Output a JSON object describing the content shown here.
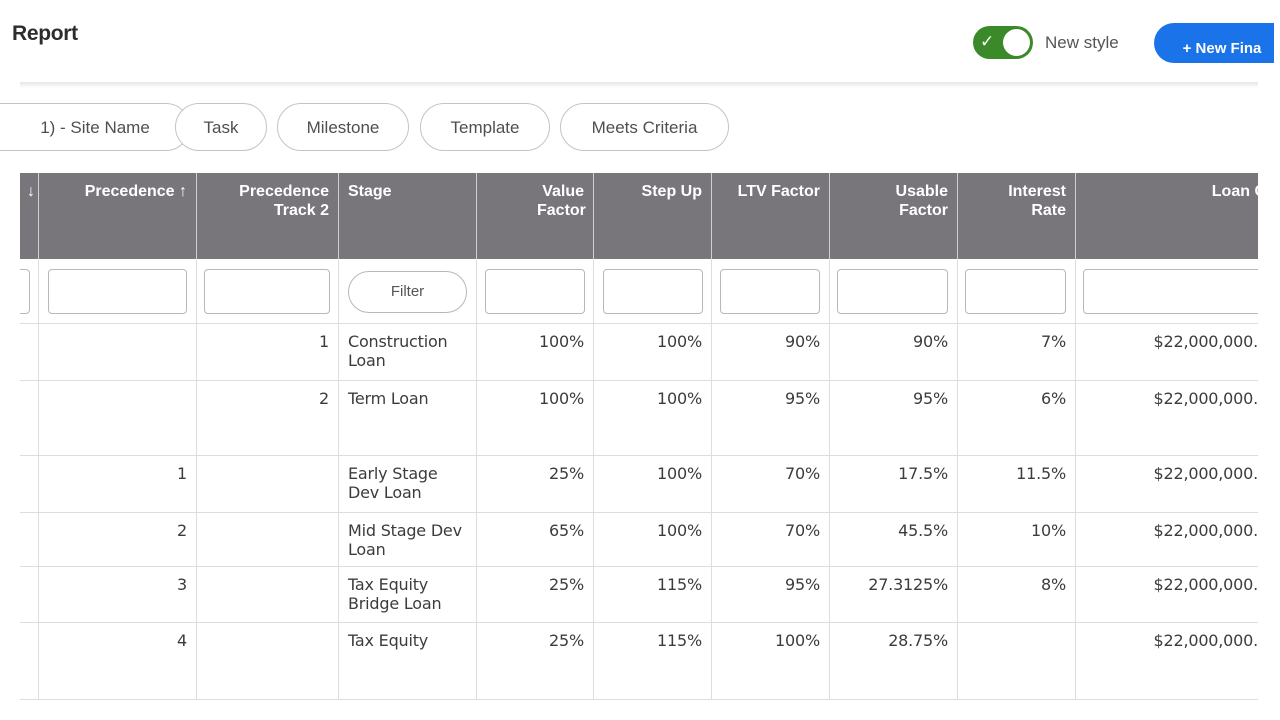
{
  "header": {
    "title": "Report",
    "toggle_label": "New style",
    "new_button_label": "+ New Fina"
  },
  "chips": [
    "1) - Site Name",
    "Task",
    "Milestone",
    "Template",
    "Meets Criteria"
  ],
  "table": {
    "columns": [
      {
        "key": "prev",
        "label": "↓"
      },
      {
        "key": "precedence",
        "label": "Precedence ↑"
      },
      {
        "key": "track2",
        "label": "Precedence Track 2"
      },
      {
        "key": "stage",
        "label": "Stage"
      },
      {
        "key": "value_factor",
        "label": "Value Factor"
      },
      {
        "key": "step_up",
        "label": "Step Up"
      },
      {
        "key": "ltv",
        "label": "LTV Factor"
      },
      {
        "key": "usable",
        "label": "Usable Factor"
      },
      {
        "key": "interest",
        "label": "Interest Rate"
      },
      {
        "key": "loan",
        "label": "Loan C"
      }
    ],
    "stage_filter_label": "Filter",
    "rows": [
      {
        "precedence": "",
        "track2": "1",
        "stage": "Construction Loan",
        "value_factor": "100%",
        "step_up": "100%",
        "ltv": "90%",
        "usable": "90%",
        "interest": "7%",
        "loan": "$22,000,000."
      },
      {
        "precedence": "",
        "track2": "2",
        "stage": "Term Loan",
        "value_factor": "100%",
        "step_up": "100%",
        "ltv": "95%",
        "usable": "95%",
        "interest": "6%",
        "loan": "$22,000,000."
      },
      {
        "precedence": "1",
        "track2": "",
        "stage": "Early Stage Dev Loan",
        "value_factor": "25%",
        "step_up": "100%",
        "ltv": "70%",
        "usable": "17.5%",
        "interest": "11.5%",
        "loan": "$22,000,000."
      },
      {
        "precedence": "2",
        "track2": "",
        "stage": "Mid Stage Dev Loan",
        "value_factor": "65%",
        "step_up": "100%",
        "ltv": "70%",
        "usable": "45.5%",
        "interest": "10%",
        "loan": "$22,000,000."
      },
      {
        "precedence": "3",
        "track2": "",
        "stage": "Tax Equity Bridge Loan",
        "value_factor": "25%",
        "step_up": "115%",
        "ltv": "95%",
        "usable": "27.3125%",
        "interest": "8%",
        "loan": "$22,000,000."
      },
      {
        "precedence": "4",
        "track2": "",
        "stage": "Tax Equity",
        "value_factor": "25%",
        "step_up": "115%",
        "ltv": "100%",
        "usable": "28.75%",
        "interest": "",
        "loan": "$22,000,000."
      }
    ]
  },
  "colors": {
    "header_bg": "#78767b",
    "toggle_on": "#3a8a29",
    "primary_button": "#1a73e8"
  }
}
